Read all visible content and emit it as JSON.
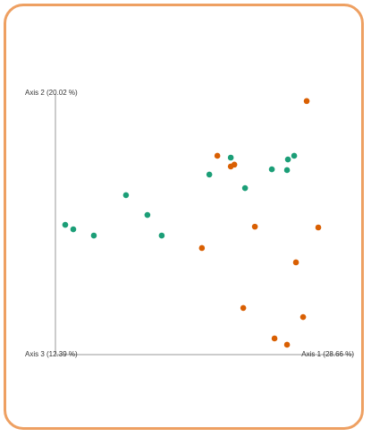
{
  "chart_data": {
    "type": "scatter",
    "xlabel": "Axis 1 (28.66 %)",
    "ylabel": "Axis 2 (20.02 %)",
    "zlabel": "Axis 3 (12.39 %)",
    "xlim": [
      0,
      100
    ],
    "ylim": [
      0,
      100
    ],
    "series": [
      {
        "color": "#1b9e77",
        "x": [
          3.3,
          6.0,
          12.9,
          23.7,
          30.9,
          35.7,
          51.7,
          58.9,
          63.7,
          72.7,
          77.8,
          78.1,
          80.2
        ],
        "values": [
          49.8,
          48.1,
          45.7,
          61.2,
          53.6,
          45.7,
          69.1,
          75.6,
          63.9,
          71.1,
          70.8,
          74.9,
          76.3
        ]
      },
      {
        "color": "#d95f02",
        "x": [
          54.4,
          58.9,
          60.1,
          49.2,
          67.0,
          84.4,
          88.3,
          80.8,
          63.1,
          83.2,
          73.6,
          77.8
        ],
        "values": [
          76.3,
          72.2,
          72.9,
          40.9,
          49.1,
          97.3,
          48.8,
          35.4,
          17.9,
          14.4,
          6.2,
          3.8
        ]
      }
    ]
  }
}
